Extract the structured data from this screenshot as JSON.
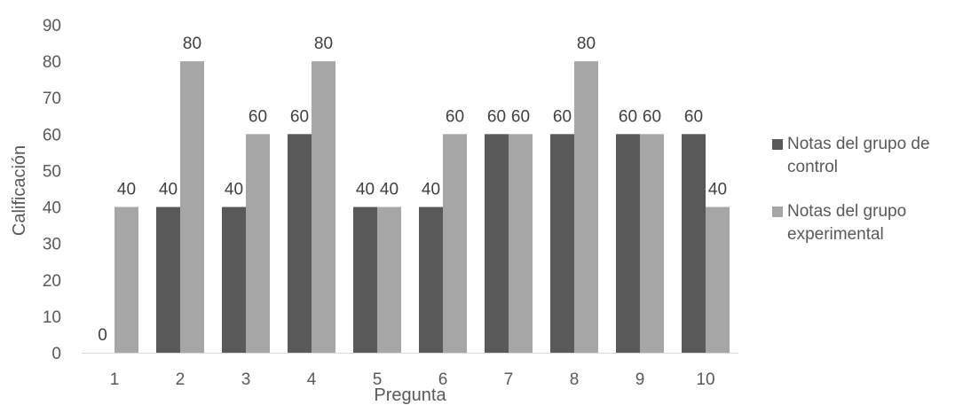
{
  "chart_data": {
    "type": "bar",
    "categories": [
      "1",
      "2",
      "3",
      "4",
      "5",
      "6",
      "7",
      "8",
      "9",
      "10"
    ],
    "series": [
      {
        "name": "Notas del grupo de control",
        "values": [
          0,
          40,
          40,
          60,
          40,
          40,
          60,
          60,
          60,
          60
        ],
        "color": "#595959"
      },
      {
        "name": "Notas del grupo experimental",
        "values": [
          40,
          80,
          60,
          80,
          40,
          60,
          60,
          80,
          60,
          40
        ],
        "color": "#a6a6a6"
      }
    ],
    "xlabel": "Pregunta",
    "ylabel": "Calificación",
    "ylim": [
      0,
      90
    ],
    "yticks": [
      0,
      10,
      20,
      30,
      40,
      50,
      60,
      70,
      80,
      90
    ],
    "grid": false,
    "legend_position": "right"
  }
}
